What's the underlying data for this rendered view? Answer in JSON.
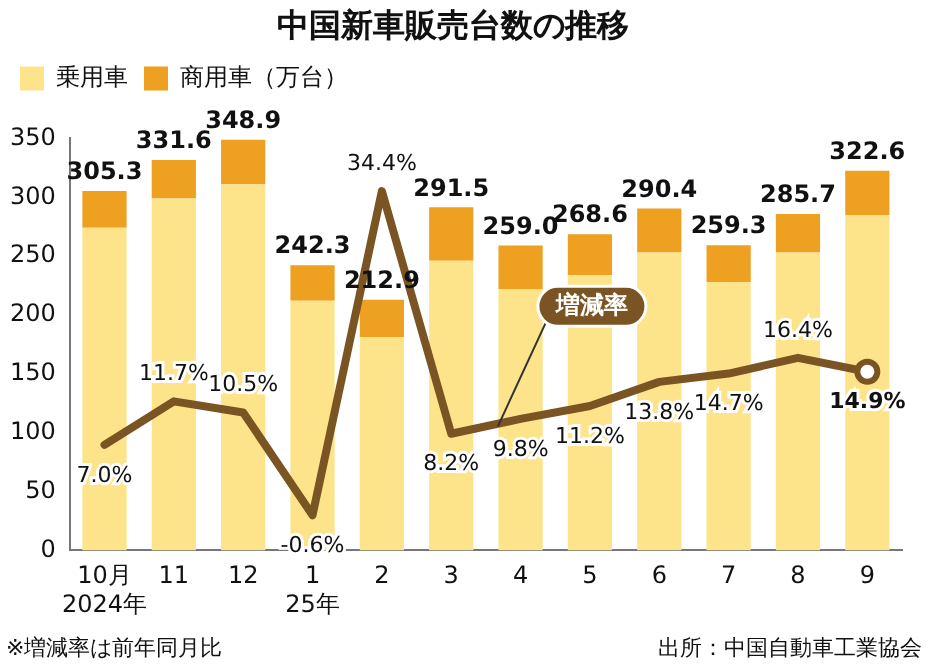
{
  "chart_data": {
    "type": "bar",
    "title": "中国新車販売台数の推移",
    "stacked": true,
    "categories": [
      "10月\n2024年",
      "11",
      "12",
      "1\n25年",
      "2",
      "3",
      "4",
      "5",
      "6",
      "7",
      "8",
      "9"
    ],
    "series": [
      {
        "name": "乗用車",
        "color": "#fde48a",
        "values": [
          274,
          299,
          311,
          212,
          181,
          246,
          222,
          234,
          253,
          228,
          253,
          285
        ]
      },
      {
        "name": "商用車（万台）",
        "color": "#eea020",
        "values": [
          31.3,
          32.6,
          37.9,
          30.3,
          31.9,
          45.5,
          37.0,
          34.6,
          37.4,
          31.3,
          32.7,
          37.6
        ]
      },
      {
        "name": "増減率",
        "type": "line",
        "axis": "y2",
        "color": "#7b5424",
        "values": [
          7.0,
          11.7,
          10.5,
          -0.6,
          34.4,
          8.2,
          9.8,
          11.2,
          13.8,
          14.7,
          16.4,
          14.9
        ],
        "value_labels": [
          "7.0%",
          "11.7%",
          "10.5%",
          "-0.6%",
          "34.4%",
          "8.2%",
          "9.8%",
          "11.2%",
          "13.8%",
          "14.7%",
          "16.4%",
          "14.9%"
        ]
      }
    ],
    "totals": [
      "305.3",
      "331.6",
      "348.9",
      "242.3",
      "212.9",
      "291.5",
      "259.0",
      "268.6",
      "290.4",
      "259.3",
      "285.7",
      "322.6"
    ],
    "ylim": [
      0,
      350
    ],
    "yticks": [
      0,
      50,
      100,
      150,
      200,
      250,
      300,
      350
    ],
    "y2lim": [
      -4.4,
      40.1
    ],
    "grid": false,
    "legend": "top left",
    "marker": "none",
    "line_style": "solid",
    "annotations": [
      "※増減率は前年同月比",
      "出所：中国自動車工業協会"
    ]
  }
}
